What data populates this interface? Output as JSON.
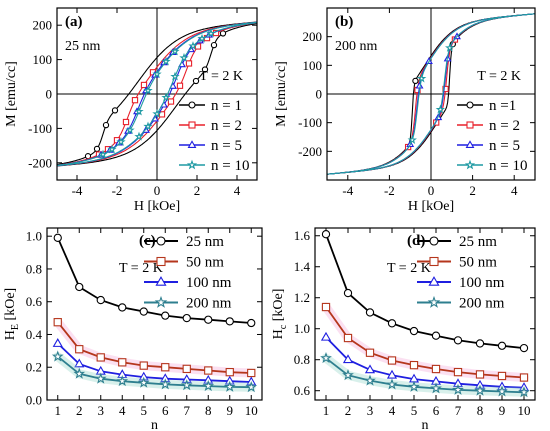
{
  "chart_data": [
    {
      "type": "line",
      "panel": "(a)",
      "annotations": [
        "25 nm",
        "T = 2 K"
      ],
      "xlabel": "H [kOe]",
      "ylabel": "M [emu/cc]",
      "xlim": [
        -5,
        5
      ],
      "ylim": [
        -250,
        250
      ],
      "xticks": [
        -4,
        -2,
        0,
        2,
        4
      ],
      "yticks": [
        -200,
        -100,
        0,
        100,
        200
      ],
      "hysteresis": {
        "ms": 190,
        "slope": 4,
        "tail_value": 150,
        "tail_width": 2.0
      },
      "legend_position": "bottom-right",
      "series": [
        {
          "name": "n = 1",
          "color": "#000000",
          "marker": "circle",
          "hc": 2.7,
          "core_width": 0.28
        },
        {
          "name": "n = 2",
          "color": "#e8202a",
          "marker": "square",
          "hc": 1.5,
          "core_width": 0.45
        },
        {
          "name": "n = 5",
          "color": "#1f1fe0",
          "marker": "triangle",
          "hc": 1.0,
          "core_width": 0.55
        },
        {
          "name": "n = 10",
          "color": "#1f9aa3",
          "marker": "star",
          "hc": 0.85,
          "core_width": 0.6
        }
      ]
    },
    {
      "type": "line",
      "panel": "(b)",
      "annotations": [
        "200 nm",
        "T = 2 K"
      ],
      "xlabel": "H [kOe]",
      "ylabel": "M [emu/cc]",
      "xlim": [
        -5,
        5
      ],
      "ylim": [
        -300,
        300
      ],
      "xticks": [
        -4,
        -2,
        0,
        2,
        4
      ],
      "yticks": [
        -200,
        -100,
        0,
        100,
        200
      ],
      "hysteresis": {
        "ms": 250,
        "slope": 6,
        "tail_value": 150,
        "tail_width": 1.4
      },
      "legend_position": "bottom-right",
      "series": [
        {
          "name": "n =1",
          "color": "#000000",
          "marker": "circle",
          "hc": 0.9,
          "core_width": 0.08
        },
        {
          "name": "n = 2",
          "color": "#e8202a",
          "marker": "square",
          "hc": 0.75,
          "core_width": 0.15
        },
        {
          "name": "n = 5",
          "color": "#1f1fe0",
          "marker": "triangle",
          "hc": 0.68,
          "core_width": 0.17
        },
        {
          "name": "n = 10",
          "color": "#1f9aa3",
          "marker": "star",
          "hc": 0.65,
          "core_width": 0.18
        }
      ]
    },
    {
      "type": "line",
      "panel": "(c)",
      "annotations": [
        "T = 2 K"
      ],
      "xlabel": "n",
      "ylabel": "H_E [kOe]",
      "xlim": [
        0.5,
        10.5
      ],
      "ylim": [
        0.0,
        1.05
      ],
      "xticks": [
        1,
        2,
        3,
        4,
        5,
        6,
        7,
        8,
        9,
        10
      ],
      "yticks": [
        0.0,
        0.2,
        0.4,
        0.6,
        0.8,
        1.0
      ],
      "legend_position": "top-right",
      "x": [
        1,
        2,
        3,
        4,
        5,
        6,
        7,
        8,
        9,
        10
      ],
      "series": [
        {
          "name": "25 nm",
          "color": "#000000",
          "marker": "circle",
          "values": [
            0.99,
            0.69,
            0.61,
            0.565,
            0.54,
            0.515,
            0.5,
            0.49,
            0.48,
            0.47
          ]
        },
        {
          "name": "50 nm",
          "color": "#b5361c",
          "marker": "square",
          "values": [
            0.475,
            0.31,
            0.26,
            0.23,
            0.21,
            0.2,
            0.19,
            0.18,
            0.17,
            0.165
          ]
        },
        {
          "name": "100 nm",
          "color": "#1f1fe0",
          "marker": "triangle",
          "values": [
            0.345,
            0.22,
            0.175,
            0.155,
            0.14,
            0.13,
            0.125,
            0.12,
            0.115,
            0.11
          ]
        },
        {
          "name": "200 nm",
          "color": "#2e7f8f",
          "marker": "star",
          "values": [
            0.265,
            0.16,
            0.13,
            0.115,
            0.105,
            0.095,
            0.09,
            0.085,
            0.08,
            0.078
          ]
        }
      ]
    },
    {
      "type": "line",
      "panel": "(d)",
      "annotations": [
        "T = 2 K"
      ],
      "xlabel": "n",
      "ylabel": "H_c [kOe]",
      "xlim": [
        0.5,
        10.5
      ],
      "ylim": [
        0.54,
        1.65
      ],
      "xticks": [
        1,
        2,
        3,
        4,
        5,
        6,
        7,
        8,
        9,
        10
      ],
      "yticks": [
        0.6,
        0.8,
        1.0,
        1.2,
        1.4,
        1.6
      ],
      "legend_position": "top-right",
      "x": [
        1,
        2,
        3,
        4,
        5,
        6,
        7,
        8,
        9,
        10
      ],
      "series": [
        {
          "name": "25 nm",
          "color": "#000000",
          "marker": "circle",
          "values": [
            1.61,
            1.23,
            1.105,
            1.035,
            0.985,
            0.955,
            0.925,
            0.905,
            0.89,
            0.875
          ]
        },
        {
          "name": "50 nm",
          "color": "#b5361c",
          "marker": "square",
          "values": [
            1.14,
            0.94,
            0.845,
            0.795,
            0.765,
            0.74,
            0.72,
            0.705,
            0.695,
            0.685
          ]
        },
        {
          "name": "100 nm",
          "color": "#1f1fe0",
          "marker": "triangle",
          "values": [
            0.945,
            0.8,
            0.735,
            0.7,
            0.675,
            0.66,
            0.645,
            0.635,
            0.625,
            0.62
          ]
        },
        {
          "name": "200 nm",
          "color": "#2e7f8f",
          "marker": "star",
          "values": [
            0.81,
            0.7,
            0.665,
            0.64,
            0.625,
            0.615,
            0.605,
            0.6,
            0.595,
            0.59
          ]
        }
      ]
    }
  ]
}
